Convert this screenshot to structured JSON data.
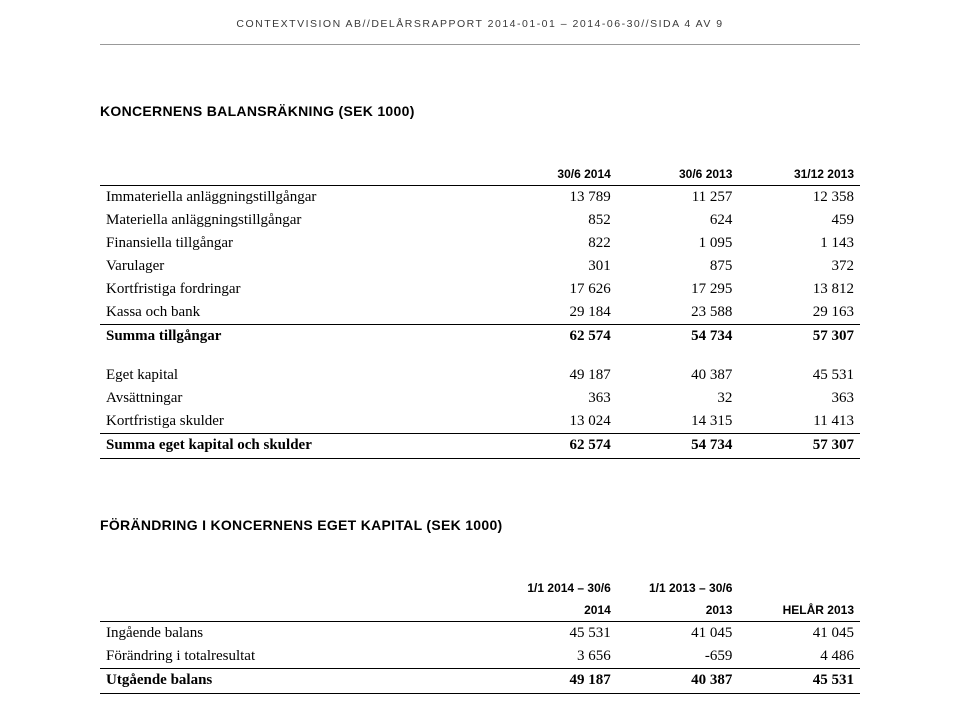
{
  "header": {
    "text": "CONTEXTVISION AB//DELÅRSRAPPORT 2014-01-01 – 2014-06-30//SIDA 4 AV 9"
  },
  "section1": {
    "title": "KONCERNENS BALANSRÄKNING (SEK 1000)",
    "columns": [
      "",
      "30/6 2014",
      "30/6 2013",
      "31/12 2013"
    ],
    "rows": [
      {
        "label": "Immateriella anläggningstillgångar",
        "v": [
          "13 789",
          "11 257",
          "12 358"
        ]
      },
      {
        "label": "Materiella anläggningstillgångar",
        "v": [
          "852",
          "624",
          "459"
        ]
      },
      {
        "label": "Finansiella tillgångar",
        "v": [
          "822",
          "1 095",
          "1 143"
        ]
      },
      {
        "label": "Varulager",
        "v": [
          "301",
          "875",
          "372"
        ]
      },
      {
        "label": "Kortfristiga fordringar",
        "v": [
          "17 626",
          "17 295",
          "13 812"
        ]
      },
      {
        "label": "Kassa och bank",
        "v": [
          "29 184",
          "23 588",
          "29 163"
        ]
      }
    ],
    "sum1": {
      "label": "Summa tillgångar",
      "v": [
        "62 574",
        "54 734",
        "57 307"
      ]
    },
    "rows2": [
      {
        "label": "Eget kapital",
        "v": [
          "49 187",
          "40 387",
          "45 531"
        ]
      },
      {
        "label": "Avsättningar",
        "v": [
          "363",
          "32",
          "363"
        ]
      },
      {
        "label": "Kortfristiga skulder",
        "v": [
          "13 024",
          "14 315",
          "11 413"
        ]
      }
    ],
    "sum2": {
      "label": "Summa eget kapital och skulder",
      "v": [
        "62 574",
        "54 734",
        "57 307"
      ]
    }
  },
  "section2": {
    "title": "FÖRÄNDRING I KONCERNENS EGET KAPITAL (SEK 1000)",
    "columns_top": [
      "",
      "1/1 2014 – 30/6",
      "1/1 2013 – 30/6",
      ""
    ],
    "columns_bottom": [
      "",
      "2014",
      "2013",
      "HELÅR 2013"
    ],
    "rows": [
      {
        "label": "Ingående balans",
        "v": [
          "45 531",
          "41 045",
          "41 045"
        ]
      },
      {
        "label": "Förändring i totalresultat",
        "v": [
          "3 656",
          "-659",
          "4 486"
        ]
      }
    ],
    "sum": {
      "label": "Utgående balans",
      "v": [
        "49 187",
        "40 387",
        "45 531"
      ]
    }
  }
}
